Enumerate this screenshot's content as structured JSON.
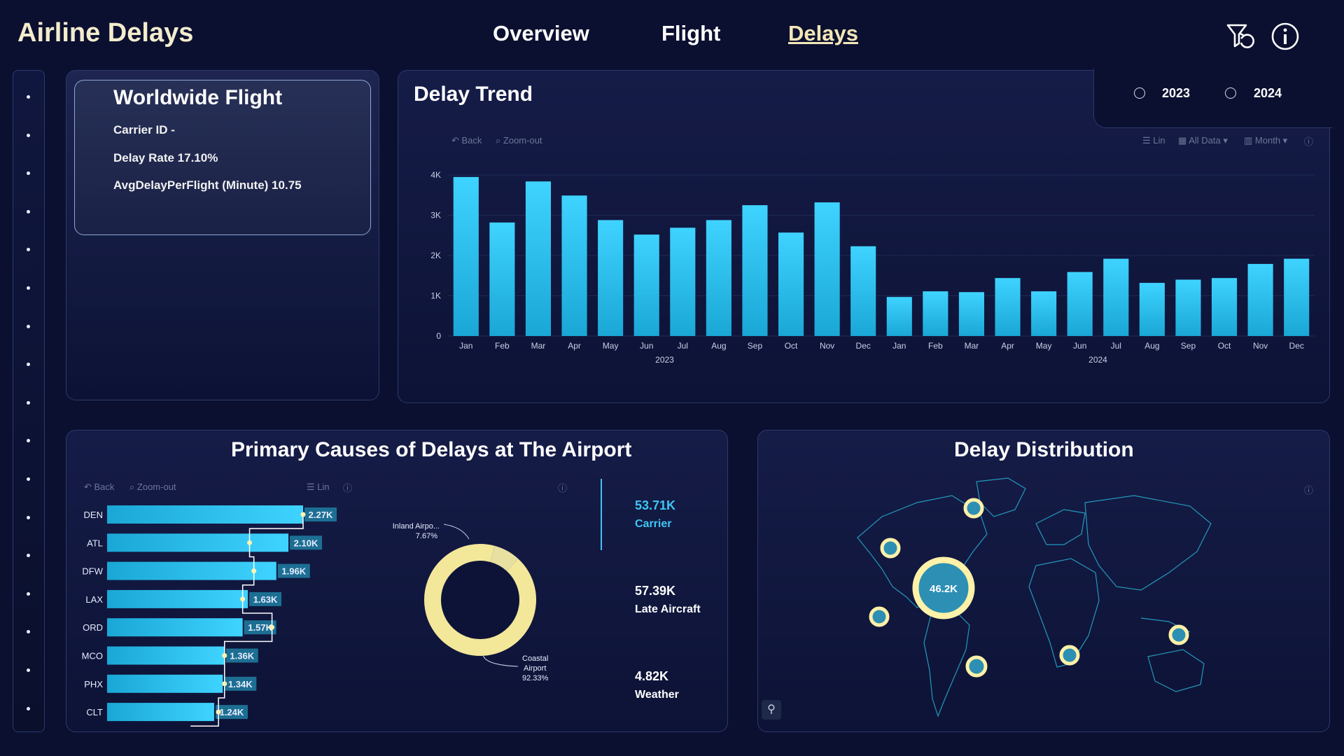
{
  "app": {
    "title": "Airline Delays",
    "nav": [
      "Overview",
      "Flight",
      "Delays"
    ],
    "active_nav": "Delays",
    "icons": [
      "filter-reset-icon",
      "info-icon"
    ]
  },
  "kpi": {
    "title": "Worldwide Flight",
    "carrier_line": "Carrier ID -",
    "delay_rate_line": "Delay Rate 17.10%",
    "avg_delay_line": "AvgDelayPerFlight (Minute) 10.75"
  },
  "year_filter": {
    "options": [
      "2023",
      "2024"
    ]
  },
  "delay_trend": {
    "title": "Delay Trend",
    "toolbar": {
      "back": "Back",
      "zoom_out": "Zoom-out",
      "lin": "Lin",
      "all_data": "All Data",
      "month": "Month"
    }
  },
  "causes": {
    "title": "Primary Causes of Delays at The Airport",
    "toolbar": {
      "back": "Back",
      "zoom_out": "Zoom-out",
      "lin": "Lin"
    },
    "legend": [
      {
        "value": "53.71K",
        "name": "Carrier",
        "color": "#3ec5f5"
      },
      {
        "value": "57.39K",
        "name": "Late Aircraft",
        "color": "#ffffff"
      },
      {
        "value": "4.82K",
        "name": "Weather",
        "color": "#ffffff"
      }
    ]
  },
  "distribution": {
    "title": "Delay Distribution",
    "main_bubble_label": "46.2K"
  },
  "chart_data": [
    {
      "type": "bar",
      "title": "Delay Trend",
      "categories": [
        "Jan",
        "Feb",
        "Mar",
        "Apr",
        "May",
        "Jun",
        "Jul",
        "Aug",
        "Sep",
        "Oct",
        "Nov",
        "Dec",
        "Jan",
        "Feb",
        "Mar",
        "Apr",
        "May",
        "Jun",
        "Jul",
        "Aug",
        "Sep",
        "Oct",
        "Nov",
        "Dec"
      ],
      "groups": [
        {
          "label": "2023",
          "from": 0,
          "to": 11
        },
        {
          "label": "2024",
          "from": 12,
          "to": 23
        }
      ],
      "values": [
        3950,
        2820,
        3840,
        3490,
        2880,
        2520,
        2690,
        2880,
        3250,
        2570,
        3320,
        2230,
        970,
        1110,
        1090,
        1440,
        1110,
        1590,
        1920,
        1320,
        1400,
        1440,
        1790,
        1920
      ],
      "yticks": [
        "0",
        "1K",
        "2K",
        "3K",
        "4K"
      ],
      "ylim": [
        0,
        4000
      ],
      "color": "#36c8f4"
    },
    {
      "type": "bar",
      "orientation": "horizontal",
      "categories": [
        "DEN",
        "ATL",
        "DFW",
        "LAX",
        "ORD",
        "MCO",
        "PHX",
        "CLT"
      ],
      "values": [
        2270,
        2100,
        1960,
        1630,
        1570,
        1360,
        1340,
        1240
      ],
      "labels": [
        "2.27K",
        "2.10K",
        "1.96K",
        "1.63K",
        "1.57K",
        "1.36K",
        "1.34K",
        "1.24K"
      ],
      "secondary_values": [
        2270,
        1650,
        1700,
        1570,
        1910,
        1360,
        1360,
        1290
      ],
      "color": "#36c8f4"
    },
    {
      "type": "pie",
      "slices": [
        {
          "name": "Inland Airpo...",
          "value": 7.67,
          "label": "7.67%"
        },
        {
          "name": "Coastal Airport",
          "value": 92.33,
          "label": "92.33%"
        }
      ]
    }
  ]
}
